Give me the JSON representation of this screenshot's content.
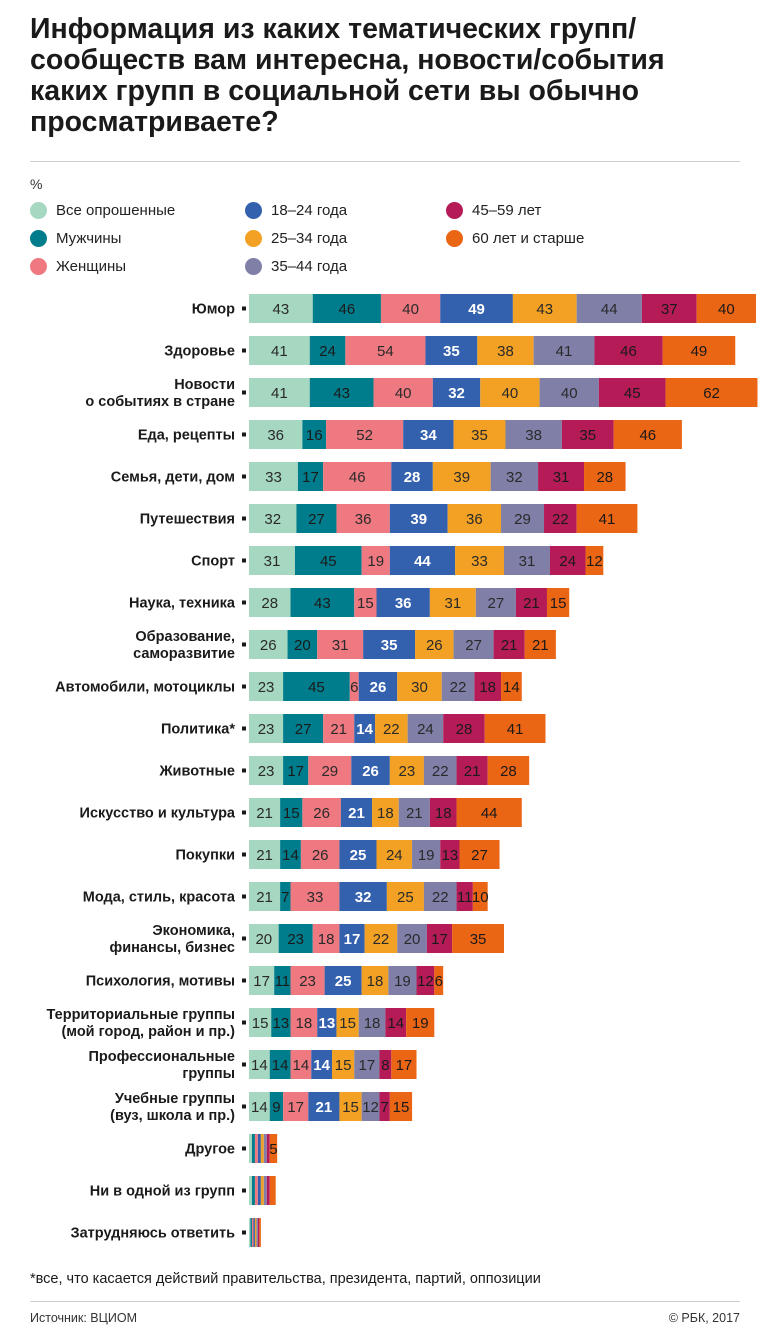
{
  "title": "Информация из каких тематических групп/сообществ вам интересна, новости/события каких групп в социальной сети вы обычно просматриваете?",
  "unit_label": "%",
  "footnote": "*все, что касается действий правительства, президента, партий, оппозиции",
  "source": "Источник: ВЦИОМ",
  "copyright": "© РБК, 2017",
  "chart_data": {
    "type": "bar",
    "orientation": "horizontal",
    "stacked": true,
    "legend_position": "top",
    "categories": [
      [
        "Юмор"
      ],
      [
        "Здоровье"
      ],
      [
        "Новости",
        "о событиях в стране"
      ],
      [
        "Еда, рецепты"
      ],
      [
        "Семья, дети, дом"
      ],
      [
        "Путешествия"
      ],
      [
        "Спорт"
      ],
      [
        "Наука, техника"
      ],
      [
        "Образование,",
        "саморазвитие"
      ],
      [
        "Автомобили, мотоциклы"
      ],
      [
        "Политика*"
      ],
      [
        "Животные"
      ],
      [
        "Искусство и культура"
      ],
      [
        "Покупки"
      ],
      [
        "Мода, стиль, красота"
      ],
      [
        "Экономика,",
        "финансы, бизнес"
      ],
      [
        "Психология, мотивы"
      ],
      [
        "Территориальные группы",
        "(мой город, район и пр.)"
      ],
      [
        "Профессиональные",
        "группы"
      ],
      [
        "Учебные группы",
        "(вуз, школа и пр.)"
      ],
      [
        "Другое"
      ],
      [
        "Ни в одной из групп"
      ],
      [
        "Затрудняюсь ответить"
      ]
    ],
    "series": [
      {
        "name": "Все опрошенные",
        "color": "#a6d7c1",
        "values": [
          43,
          41,
          41,
          36,
          33,
          32,
          31,
          28,
          26,
          23,
          23,
          23,
          21,
          21,
          21,
          20,
          17,
          15,
          14,
          14,
          2,
          2,
          1
        ]
      },
      {
        "name": "Мужчины",
        "color": "#007d8c",
        "values": [
          46,
          24,
          43,
          16,
          17,
          27,
          45,
          43,
          20,
          45,
          27,
          17,
          15,
          14,
          7,
          23,
          11,
          13,
          14,
          9,
          2,
          2,
          1
        ]
      },
      {
        "name": "Женщины",
        "color": "#ee7981",
        "values": [
          40,
          54,
          40,
          52,
          46,
          36,
          19,
          15,
          31,
          6,
          21,
          29,
          26,
          26,
          33,
          18,
          23,
          18,
          14,
          17,
          2,
          2,
          1
        ]
      },
      {
        "name": "18–24 года",
        "color": "#3461ae",
        "values": [
          49,
          35,
          32,
          34,
          28,
          39,
          44,
          36,
          35,
          26,
          14,
          26,
          21,
          25,
          32,
          17,
          25,
          13,
          14,
          21,
          2,
          2,
          1
        ]
      },
      {
        "name": "25–34 года",
        "color": "#f2a124",
        "values": [
          43,
          38,
          40,
          35,
          39,
          36,
          33,
          31,
          26,
          30,
          22,
          23,
          18,
          24,
          25,
          22,
          18,
          15,
          15,
          15,
          2,
          2,
          1
        ]
      },
      {
        "name": "35–44 года",
        "color": "#7f7fa8",
        "values": [
          44,
          41,
          40,
          38,
          32,
          29,
          31,
          27,
          27,
          22,
          24,
          22,
          21,
          19,
          22,
          20,
          19,
          18,
          17,
          12,
          2,
          2,
          1
        ]
      },
      {
        "name": "45–59 лет",
        "color": "#b51b57",
        "values": [
          37,
          46,
          45,
          35,
          31,
          22,
          24,
          21,
          21,
          18,
          28,
          21,
          18,
          13,
          11,
          17,
          12,
          14,
          8,
          7,
          2,
          2,
          1
        ]
      },
      {
        "name": "60 лет и старше",
        "color": "#ea6514",
        "values": [
          40,
          49,
          62,
          46,
          28,
          41,
          12,
          15,
          21,
          14,
          41,
          28,
          44,
          27,
          10,
          35,
          6,
          19,
          17,
          15,
          5,
          4,
          1
        ]
      }
    ],
    "label_threshold": 4
  }
}
